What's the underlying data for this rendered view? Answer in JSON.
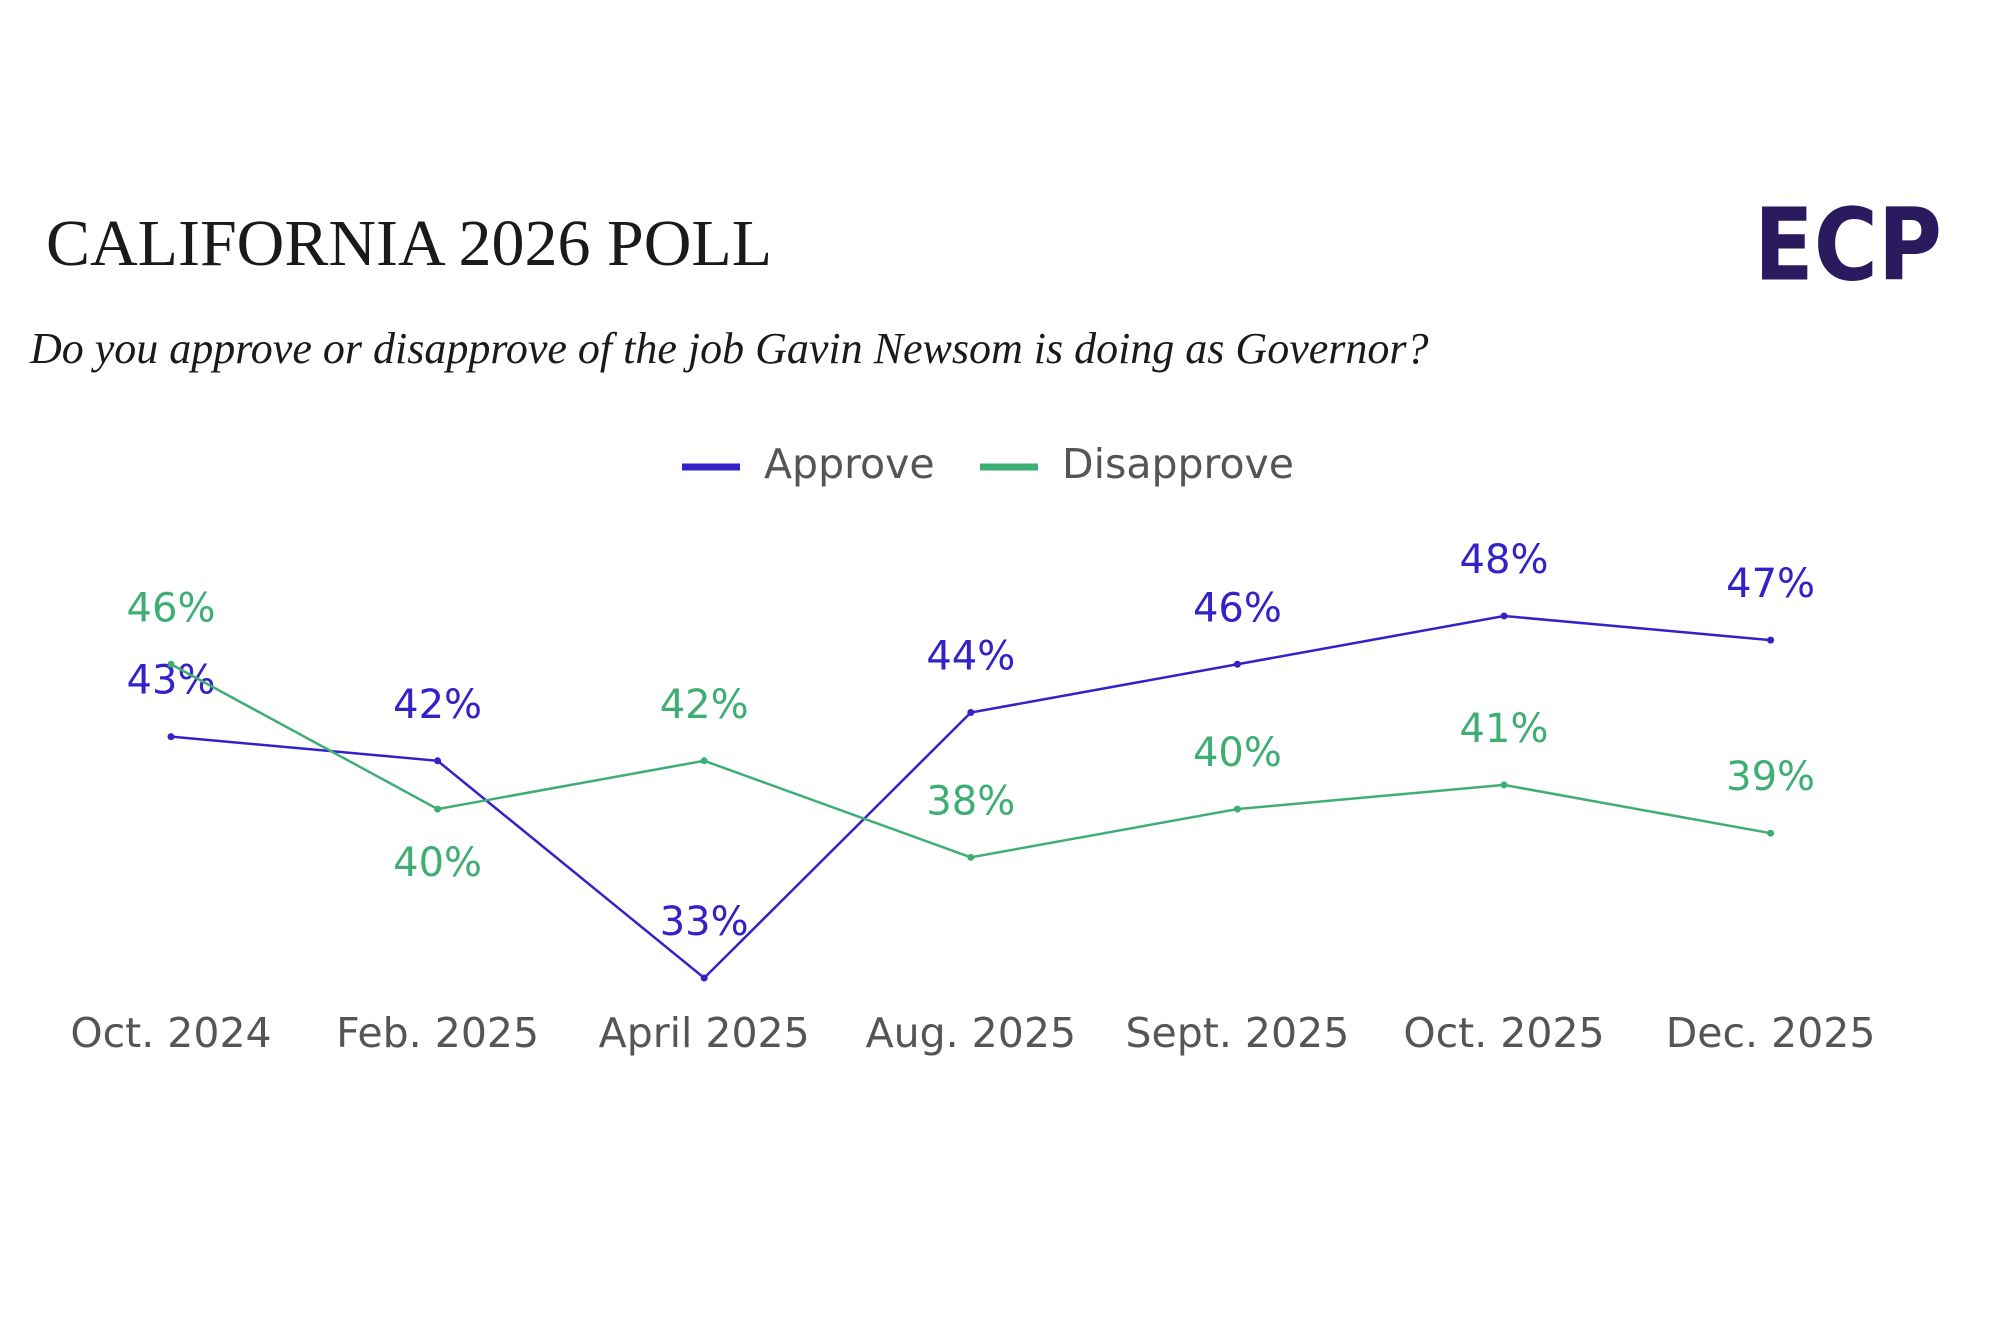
{
  "chart_data": {
    "type": "line",
    "title": "CALIFORNIA 2026 POLL",
    "subtitle": "Do you approve or disapprove of the job Gavin Newsom is doing as Governor?",
    "logo": "ECP",
    "categories": [
      "Oct. 2024",
      "Feb. 2025",
      "April 2025",
      "Aug. 2025",
      "Sept. 2025",
      "Oct. 2025",
      "Dec. 2025"
    ],
    "series": [
      {
        "name": "Approve",
        "color": "#3222c8",
        "values": [
          43,
          42,
          33,
          44,
          46,
          48,
          47
        ],
        "value_labels": [
          "43%",
          "42%",
          "33%",
          "44%",
          "46%",
          "48%",
          "47%"
        ]
      },
      {
        "name": "Disapprove",
        "color": "#3fae74",
        "values": [
          46,
          40,
          42,
          38,
          40,
          41,
          39
        ],
        "value_labels": [
          "46%",
          "40%",
          "42%",
          "38%",
          "40%",
          "41%",
          "39%"
        ]
      }
    ],
    "legend": "top"
  }
}
